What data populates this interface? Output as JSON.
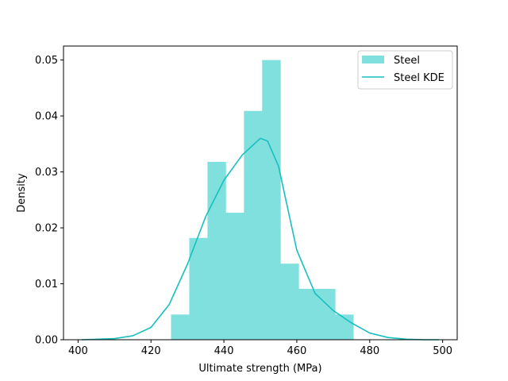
{
  "chart_data": {
    "type": "bar",
    "title": "",
    "xlabel": "Ultimate strength (MPa)",
    "ylabel": "Density",
    "xlim": [
      396,
      504
    ],
    "ylim": [
      0,
      0.0525
    ],
    "xticks": [
      400,
      420,
      440,
      460,
      480,
      500
    ],
    "yticks": [
      0.0,
      0.01,
      0.02,
      0.03,
      0.04,
      0.05
    ],
    "xtick_labels": [
      "400",
      "420",
      "440",
      "460",
      "480",
      "500"
    ],
    "ytick_labels": [
      "0.00",
      "0.01",
      "0.02",
      "0.03",
      "0.04",
      "0.05"
    ],
    "grid": false,
    "legend": {
      "placement": "top-right"
    },
    "series": [
      {
        "name": "Steel",
        "kind": "histogram",
        "color": "#80e0de",
        "bins": [
          {
            "x0": 425.5,
            "x1": 430.5,
            "density": 0.0045
          },
          {
            "x0": 430.5,
            "x1": 435.5,
            "density": 0.0182
          },
          {
            "x0": 435.5,
            "x1": 440.5,
            "density": 0.0318
          },
          {
            "x0": 440.5,
            "x1": 445.5,
            "density": 0.0227
          },
          {
            "x0": 445.5,
            "x1": 450.5,
            "density": 0.0409
          },
          {
            "x0": 450.5,
            "x1": 455.5,
            "density": 0.05
          },
          {
            "x0": 455.5,
            "x1": 460.5,
            "density": 0.0136
          },
          {
            "x0": 460.5,
            "x1": 465.5,
            "density": 0.0091
          },
          {
            "x0": 465.5,
            "x1": 470.5,
            "density": 0.0091
          },
          {
            "x0": 470.5,
            "x1": 475.5,
            "density": 0.0045
          }
        ]
      },
      {
        "name": "Steel KDE",
        "kind": "line",
        "color": "#17bfbf",
        "x": [
          401,
          410,
          415,
          420,
          425,
          430,
          435,
          440,
          445,
          450,
          452,
          455,
          460,
          465,
          470,
          475,
          480,
          485,
          490,
          495,
          499
        ],
        "y": [
          0.0,
          0.0002,
          0.0007,
          0.0022,
          0.0063,
          0.0135,
          0.022,
          0.0285,
          0.033,
          0.036,
          0.0355,
          0.031,
          0.016,
          0.0083,
          0.0052,
          0.003,
          0.0012,
          0.0004,
          0.0001,
          0.0,
          0.0
        ]
      }
    ]
  }
}
